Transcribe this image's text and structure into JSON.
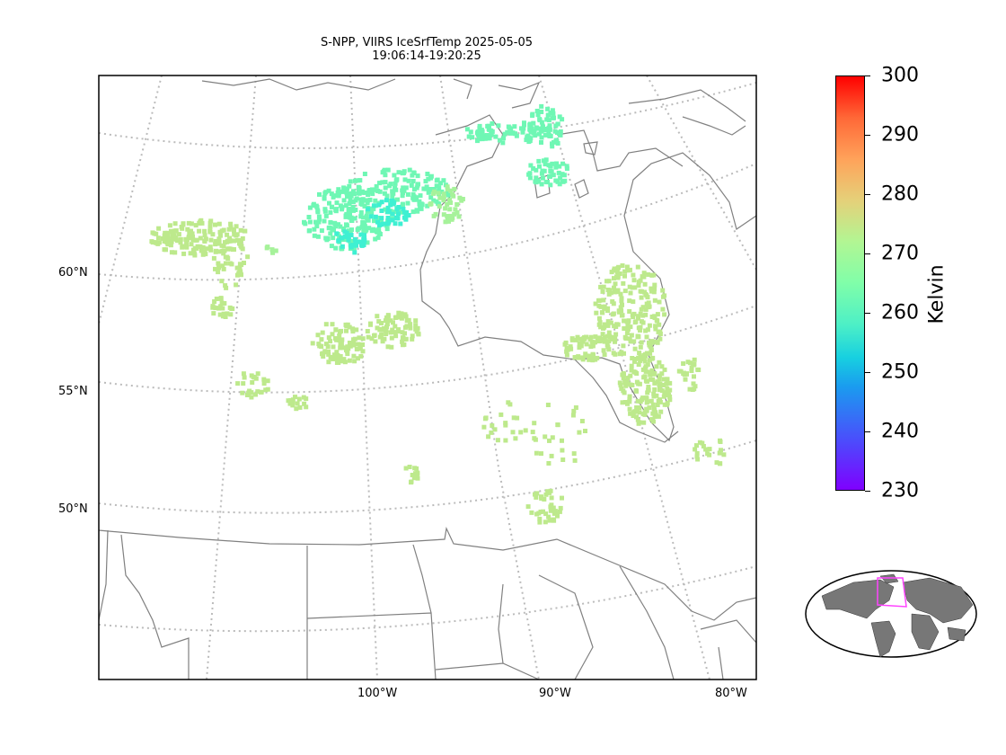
{
  "title": {
    "line1": "S-NPP, VIIRS IceSrfTemp 2025-05-05",
    "line2": "19:06:14-19:20:25"
  },
  "map": {
    "lat_labels": [
      "60°N",
      "55°N",
      "50°N"
    ],
    "lon_labels": [
      "100°W",
      "90°W",
      "80°W"
    ],
    "colors": {
      "coastline": "#808080",
      "gridline": "#bbbbbb",
      "warm_ice": "#bde98c",
      "mid_ice": "#a6f29a",
      "cold_ice": "#6ff7b4",
      "coldest_ice": "#3ef0d2"
    }
  },
  "colorbar": {
    "title": "Kelvin",
    "ticks": [
      "300",
      "290",
      "280",
      "270",
      "260",
      "250",
      "240",
      "230"
    ],
    "min": 230,
    "max": 300,
    "colormap": "rainbow"
  },
  "inset": {
    "description_icon": "globe-locator-icon",
    "land_color": "#777777",
    "ocean_color": "#ffffff",
    "highlight_color": "#ff44ff"
  }
}
